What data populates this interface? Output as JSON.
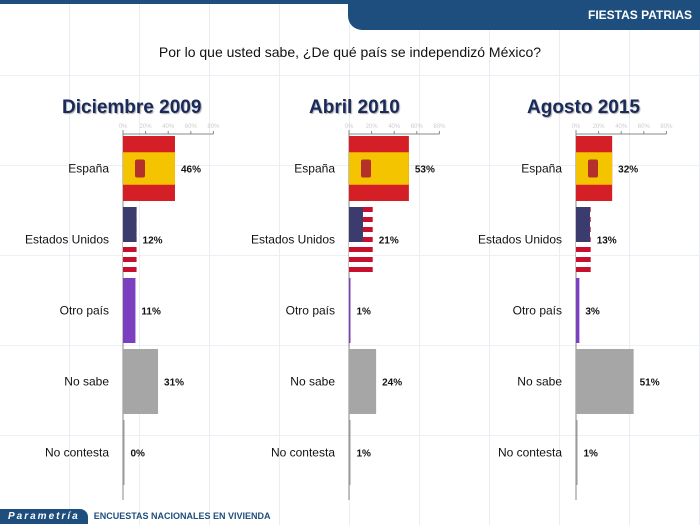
{
  "header": {
    "section": "FIESTAS PATRIAS"
  },
  "question": "Por lo que usted sabe, ¿De qué país se independizó México?",
  "footer": {
    "brand": "Parametría",
    "text": "ENCUESTAS NACIONALES EN VIVIENDA"
  },
  "colors": {
    "spain_red": "#d41f26",
    "spain_yellow": "#f4c400",
    "usa_red": "#c8102e",
    "usa_blue": "#3c3b6e",
    "otro": "#7b3fbf",
    "no_sabe": "#a6a6a6",
    "no_contesta": "#9a9a9a",
    "brand": "#1e4e7e"
  },
  "chart_data": [
    {
      "type": "bar",
      "orientation": "horizontal",
      "title": "Diciembre 2009",
      "categories": [
        "España",
        "Estados Unidos",
        "Otro país",
        "No sabe",
        "No contesta"
      ],
      "values": [
        46,
        12,
        11,
        31,
        0
      ],
      "labels": [
        "46%",
        "12%",
        "11%",
        "31%",
        "0%"
      ],
      "xticks": [
        "0%",
        "20%",
        "40%",
        "60%",
        "80%"
      ],
      "xlim": [
        0,
        80
      ]
    },
    {
      "type": "bar",
      "orientation": "horizontal",
      "title": "Abril 2010",
      "categories": [
        "España",
        "Estados Unidos",
        "Otro país",
        "No sabe",
        "No contesta"
      ],
      "values": [
        53,
        21,
        1,
        24,
        1
      ],
      "labels": [
        "53%",
        "21%",
        "1%",
        "24%",
        "1%"
      ],
      "xticks": [
        "0%",
        "20%",
        "40%",
        "60%",
        "80%"
      ],
      "xlim": [
        0,
        80
      ]
    },
    {
      "type": "bar",
      "orientation": "horizontal",
      "title": "Agosto 2015",
      "categories": [
        "España",
        "Estados Unidos",
        "Otro país",
        "No sabe",
        "No contesta"
      ],
      "values": [
        32,
        13,
        3,
        51,
        1
      ],
      "labels": [
        "32%",
        "13%",
        "3%",
        "51%",
        "1%"
      ],
      "xticks": [
        "0%",
        "20%",
        "40%",
        "60%",
        "80%"
      ],
      "xlim": [
        0,
        80
      ]
    }
  ]
}
